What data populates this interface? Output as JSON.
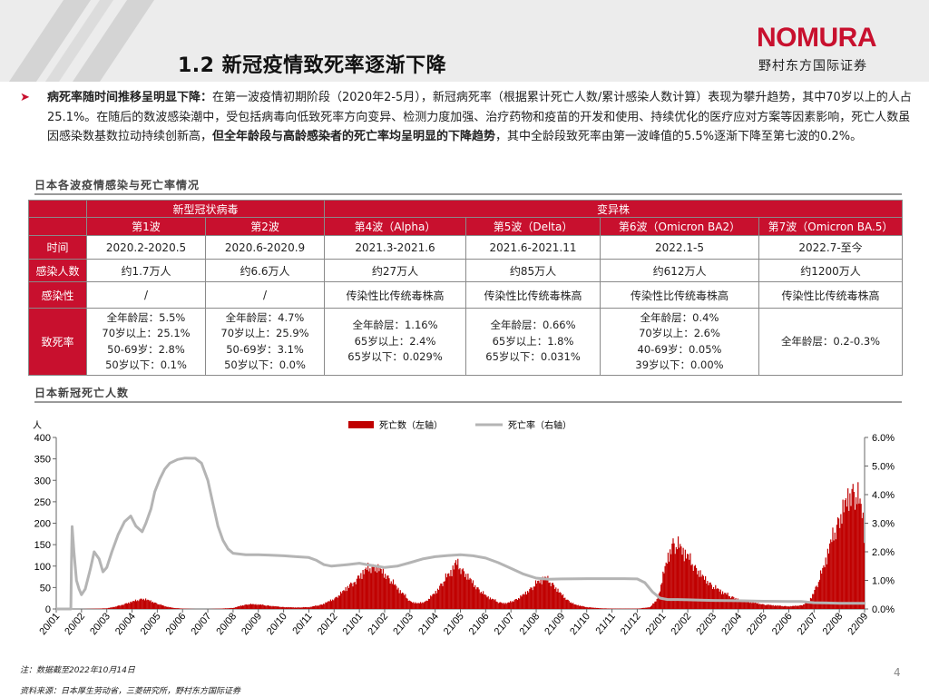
{
  "header": {
    "title": "1.2 新冠疫情致死率逐渐下降",
    "logo_word": "NOMURA",
    "logo_sub": "野村东方国际证券"
  },
  "bullet": {
    "bold1": "病死率随时间推移呈明显下降：",
    "text1": "在第一波疫情初期阶段（2020年2-5月），新冠病死率（根据累计死亡人数/累计感染人数计算）表现为攀升趋势，其中70岁以上的人占25.1%。在随后的数波感染潮中，受包括病毒向低致死率方向变异、检测力度加强、治疗药物和疫苗的开发和使用、持续优化的医疗应对方案等因素影响，死亡人数虽因感染数基数拉动持续创新高，",
    "bold2": "但全年龄段与高龄感染者的死亡率均呈明显的下降趋势",
    "text2": "，其中全龄段致死率由第一波峰值的5.5%逐渐下降至第七波的0.2%。"
  },
  "section1": "日本各波疫情感染与死亡率情况",
  "section2": "日本新冠死亡人数",
  "table": {
    "group_original": "新型冠状病毒",
    "group_variant": "变异株",
    "waves": [
      "第1波",
      "第2波",
      "第4波（Alpha）",
      "第5波（Delta）",
      "第6波（Omicron BA2）",
      "第7波（Omicron BA.5）"
    ],
    "rows": [
      {
        "label": "时间",
        "cells": [
          "2020.2-2020.5",
          "2020.6-2020.9",
          "2021.3-2021.6",
          "2021.6-2021.11",
          "2022.1-5",
          "2022.7-至今"
        ]
      },
      {
        "label": "感染人数",
        "cells": [
          "约1.7万人",
          "约6.6万人",
          "约27万人",
          "约85万人",
          "约612万人",
          "约1200万人"
        ]
      },
      {
        "label": "感染性",
        "cells": [
          "/",
          "/",
          "传染性比传统毒株高",
          "传染性比传统毒株高",
          "传染性比传统毒株高",
          "传染性比传统毒株高"
        ]
      }
    ],
    "fatality_label": "致死率",
    "fatality": [
      [
        "全年龄层：5.5%",
        "70岁以上：25.1%",
        "50-69岁：2.8%",
        "50岁以下：0.1%"
      ],
      [
        "全年龄层：4.7%",
        "70岁以上：25.9%",
        "50-69岁：3.1%",
        "50岁以下：0.0%"
      ],
      [
        "全年龄层：1.16%",
        "65岁以上：2.4%",
        "65岁以下：0.029%"
      ],
      [
        "全年龄层：0.66%",
        "65岁以上：1.8%",
        "65岁以下：0.031%"
      ],
      [
        "全年龄层：0.4%",
        "70岁以上：2.6%",
        "40-69岁：0.05%",
        "39岁以下：0.00%"
      ],
      [
        "全年龄层：0.2-0.3%"
      ]
    ]
  },
  "chart_data": {
    "type": "bar+line",
    "y_left_unit": "人",
    "ylim_left": [
      0,
      400
    ],
    "yticks_left": [
      "0",
      "50",
      "100",
      "150",
      "200",
      "250",
      "300",
      "350",
      "400"
    ],
    "ylim_right": [
      0,
      6
    ],
    "yticks_right": [
      "0.0%",
      "1.0%",
      "2.0%",
      "3.0%",
      "4.0%",
      "5.0%",
      "6.0%"
    ],
    "x_ticks": [
      "20/01",
      "20/02",
      "20/03",
      "20/04",
      "20/05",
      "20/06",
      "20/07",
      "20/08",
      "20/09",
      "20/10",
      "20/11",
      "20/12",
      "21/01",
      "21/02",
      "21/03",
      "21/04",
      "21/05",
      "21/06",
      "21/07",
      "21/08",
      "21/09",
      "21/10",
      "21/11",
      "21/12",
      "22/01",
      "22/02",
      "22/03",
      "22/04",
      "22/05",
      "22/06",
      "22/07",
      "22/08",
      "22/09"
    ],
    "series": [
      {
        "name": "死亡数（左轴）",
        "axis": "left",
        "color": "#c00000",
        "points": [
          [
            0,
            0
          ],
          [
            1,
            0
          ],
          [
            1.6,
            1
          ],
          [
            2,
            2
          ],
          [
            2.3,
            6
          ],
          [
            2.6,
            12
          ],
          [
            2.9,
            18
          ],
          [
            3.1,
            22
          ],
          [
            3.4,
            28
          ],
          [
            3.7,
            22
          ],
          [
            4.0,
            14
          ],
          [
            4.3,
            7
          ],
          [
            4.6,
            3
          ],
          [
            5,
            1
          ],
          [
            5.5,
            0
          ],
          [
            6,
            0
          ],
          [
            6.5,
            1
          ],
          [
            7,
            3
          ],
          [
            7.3,
            9
          ],
          [
            7.6,
            13
          ],
          [
            8,
            12
          ],
          [
            8.5,
            8
          ],
          [
            9,
            5
          ],
          [
            9.5,
            4
          ],
          [
            10,
            5
          ],
          [
            10.5,
            12
          ],
          [
            11,
            28
          ],
          [
            11.3,
            45
          ],
          [
            11.6,
            65
          ],
          [
            12,
            90
          ],
          [
            12.3,
            110
          ],
          [
            12.6,
            115
          ],
          [
            12.9,
            100
          ],
          [
            13.2,
            80
          ],
          [
            13.5,
            55
          ],
          [
            13.8,
            35
          ],
          [
            14,
            20
          ],
          [
            14.3,
            15
          ],
          [
            14.6,
            20
          ],
          [
            15,
            45
          ],
          [
            15.3,
            75
          ],
          [
            15.6,
            100
          ],
          [
            15.8,
            125
          ],
          [
            16,
            110
          ],
          [
            16.3,
            85
          ],
          [
            16.6,
            60
          ],
          [
            17,
            35
          ],
          [
            17.5,
            18
          ],
          [
            17.8,
            15
          ],
          [
            18,
            20
          ],
          [
            18.3,
            30
          ],
          [
            18.6,
            45
          ],
          [
            19,
            70
          ],
          [
            19.3,
            85
          ],
          [
            19.6,
            70
          ],
          [
            19.9,
            45
          ],
          [
            20.2,
            25
          ],
          [
            20.5,
            12
          ],
          [
            21,
            5
          ],
          [
            21.5,
            2
          ],
          [
            22,
            1
          ],
          [
            22.5,
            1
          ],
          [
            23,
            1
          ],
          [
            23.5,
            5
          ],
          [
            23.8,
            30
          ],
          [
            24,
            90
          ],
          [
            24.2,
            140
          ],
          [
            24.4,
            180
          ],
          [
            24.7,
            165
          ],
          [
            25,
            140
          ],
          [
            25.3,
            110
          ],
          [
            25.6,
            85
          ],
          [
            26,
            60
          ],
          [
            26.5,
            40
          ],
          [
            27,
            25
          ],
          [
            27.5,
            18
          ],
          [
            28,
            12
          ],
          [
            28.5,
            9
          ],
          [
            29,
            7
          ],
          [
            29.5,
            10
          ],
          [
            29.8,
            22
          ],
          [
            30,
            50
          ],
          [
            30.3,
            100
          ],
          [
            30.6,
            170
          ],
          [
            30.9,
            230
          ],
          [
            31.2,
            280
          ],
          [
            31.5,
            320
          ],
          [
            31.7,
            305
          ],
          [
            31.9,
            260
          ],
          [
            32,
            180
          ]
        ]
      },
      {
        "name": "死亡率（右轴）",
        "axis": "right",
        "color": "#b4b4b4",
        "points": [
          [
            0,
            0
          ],
          [
            0.55,
            0
          ],
          [
            0.58,
            0
          ],
          [
            0.6,
            1.5
          ],
          [
            0.63,
            2.88
          ],
          [
            0.7,
            2.0
          ],
          [
            0.8,
            1.0
          ],
          [
            0.9,
            0.7
          ],
          [
            1.0,
            0.5
          ],
          [
            1.15,
            0.7
          ],
          [
            1.35,
            1.4
          ],
          [
            1.5,
            2.0
          ],
          [
            1.7,
            1.75
          ],
          [
            1.85,
            1.3
          ],
          [
            2.0,
            1.45
          ],
          [
            2.2,
            2.0
          ],
          [
            2.45,
            2.6
          ],
          [
            2.7,
            3.05
          ],
          [
            2.95,
            3.25
          ],
          [
            3.15,
            2.9
          ],
          [
            3.4,
            2.7
          ],
          [
            3.55,
            3.0
          ],
          [
            3.75,
            3.5
          ],
          [
            3.9,
            4.1
          ],
          [
            4.1,
            4.55
          ],
          [
            4.3,
            4.9
          ],
          [
            4.5,
            5.1
          ],
          [
            4.8,
            5.23
          ],
          [
            5.1,
            5.28
          ],
          [
            5.5,
            5.27
          ],
          [
            5.75,
            5.1
          ],
          [
            6.0,
            4.5
          ],
          [
            6.2,
            3.7
          ],
          [
            6.4,
            2.9
          ],
          [
            6.6,
            2.4
          ],
          [
            6.8,
            2.1
          ],
          [
            7.0,
            1.95
          ],
          [
            7.5,
            1.9
          ],
          [
            8.0,
            1.9
          ],
          [
            8.5,
            1.88
          ],
          [
            9.0,
            1.86
          ],
          [
            9.5,
            1.83
          ],
          [
            10,
            1.8
          ],
          [
            10.3,
            1.7
          ],
          [
            10.6,
            1.55
          ],
          [
            10.9,
            1.5
          ],
          [
            11.5,
            1.55
          ],
          [
            12,
            1.6
          ],
          [
            12.5,
            1.52
          ],
          [
            13,
            1.45
          ],
          [
            13.5,
            1.5
          ],
          [
            14,
            1.62
          ],
          [
            14.5,
            1.75
          ],
          [
            15,
            1.83
          ],
          [
            15.5,
            1.87
          ],
          [
            16,
            1.9
          ],
          [
            16.5,
            1.86
          ],
          [
            17,
            1.78
          ],
          [
            17.5,
            1.62
          ],
          [
            18,
            1.42
          ],
          [
            18.5,
            1.22
          ],
          [
            19,
            1.08
          ],
          [
            19.5,
            1.04
          ],
          [
            20,
            1.05
          ],
          [
            21,
            1.06
          ],
          [
            22,
            1.06
          ],
          [
            22.5,
            1.06
          ],
          [
            23,
            1.05
          ],
          [
            23.3,
            0.92
          ],
          [
            23.6,
            0.6
          ],
          [
            23.9,
            0.38
          ],
          [
            24.2,
            0.33
          ],
          [
            24.6,
            0.33
          ],
          [
            25,
            0.32
          ],
          [
            26,
            0.3
          ],
          [
            27,
            0.29
          ],
          [
            28,
            0.27
          ],
          [
            29,
            0.26
          ],
          [
            29.5,
            0.26
          ],
          [
            30,
            0.22
          ],
          [
            30.5,
            0.21
          ],
          [
            31,
            0.2
          ],
          [
            32,
            0.2
          ]
        ]
      }
    ]
  },
  "note": "注：数据截至2022年10月14日",
  "source": "资料来源：日本厚生劳动省，三菱研究所，野村东方国际证券",
  "page_number": "4"
}
